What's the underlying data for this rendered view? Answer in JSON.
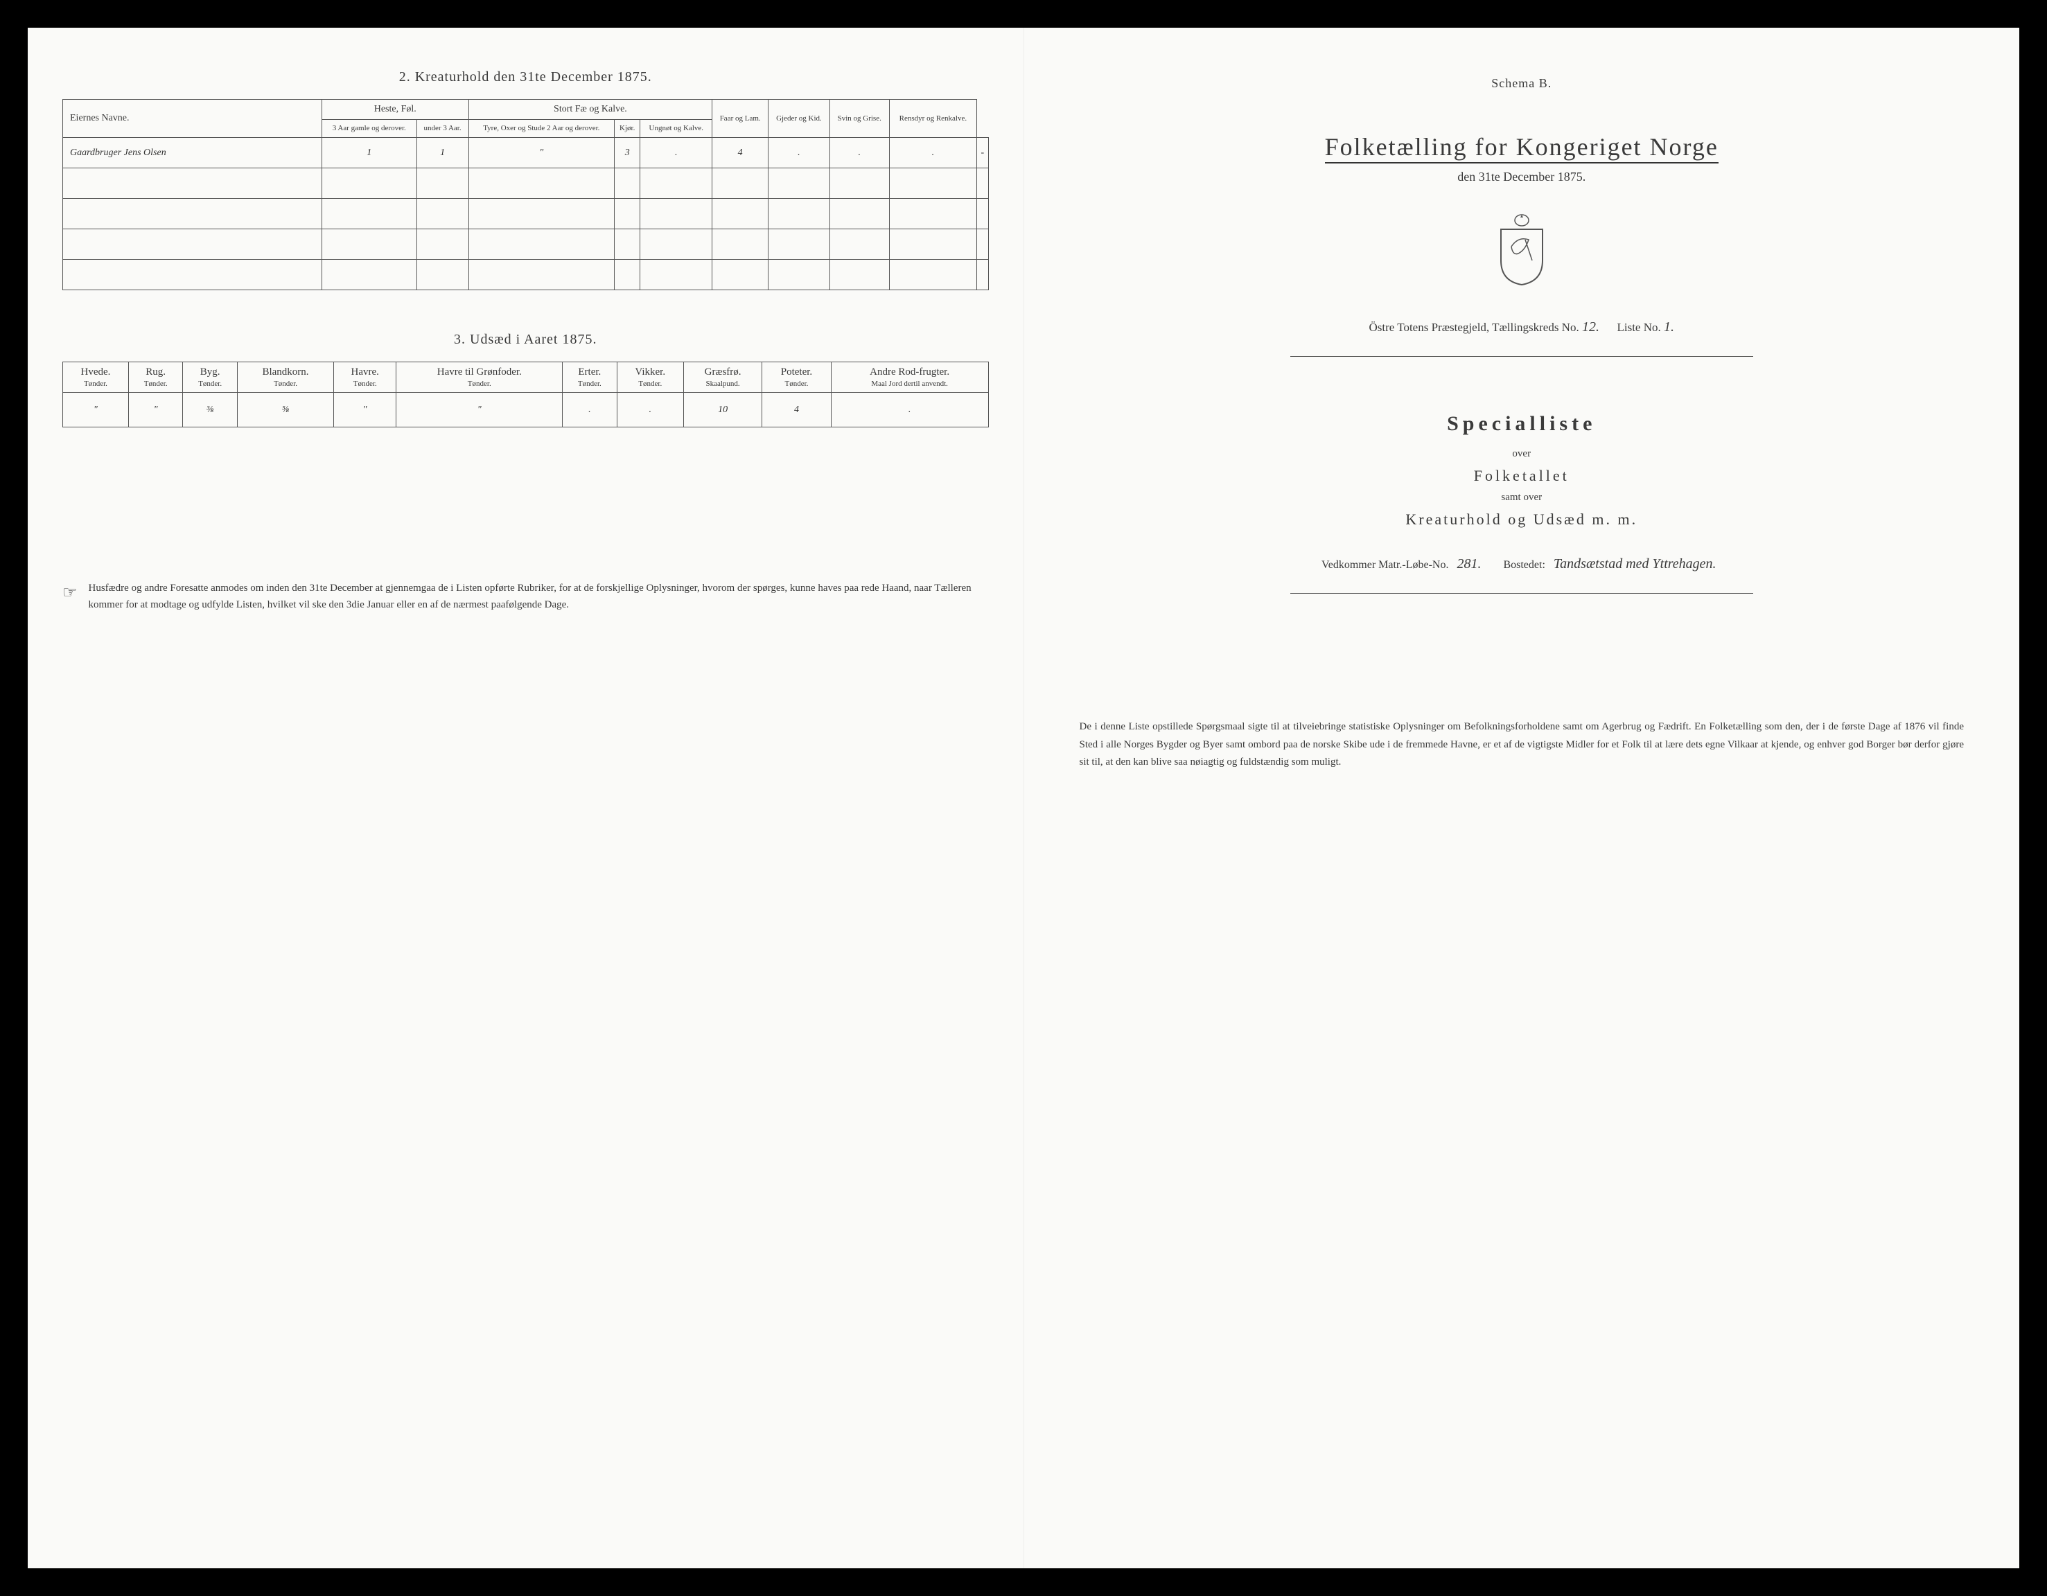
{
  "left": {
    "section2": {
      "title": "2.  Kreaturhold den 31te December 1875.",
      "headers": {
        "eier": "Eiernes Navne.",
        "heste_group": "Heste, Føl.",
        "heste_a": "3 Aar gamle og derover.",
        "heste_b": "under 3 Aar.",
        "stort_group": "Stort Fæ og Kalve.",
        "stort_a": "Tyre, Oxer og Stude 2 Aar og derover.",
        "stort_b": "Kjør.",
        "stort_c": "Ungnøt og Kalve.",
        "faar": "Faar og Lam.",
        "gjeder": "Gjeder og Kid.",
        "svin": "Svin og Grise.",
        "rensdyr": "Rensdyr og Renkalve."
      },
      "rows": [
        {
          "eier": "Gaardbruger Jens Olsen",
          "vals": [
            "1",
            "1",
            "\"",
            "3",
            ".",
            "4",
            ".",
            ".",
            ".",
            "-"
          ]
        },
        {
          "eier": "",
          "vals": [
            "",
            "",
            "",
            "",
            "",
            "",
            "",
            "",
            "",
            ""
          ]
        },
        {
          "eier": "",
          "vals": [
            "",
            "",
            "",
            "",
            "",
            "",
            "",
            "",
            "",
            ""
          ]
        },
        {
          "eier": "",
          "vals": [
            "",
            "",
            "",
            "",
            "",
            "",
            "",
            "",
            "",
            ""
          ]
        },
        {
          "eier": "",
          "vals": [
            "",
            "",
            "",
            "",
            "",
            "",
            "",
            "",
            "",
            ""
          ]
        }
      ]
    },
    "section3": {
      "title": "3.  Udsæd i Aaret 1875.",
      "columns": [
        {
          "h": "Hvede.",
          "u": "Tønder."
        },
        {
          "h": "Rug.",
          "u": "Tønder."
        },
        {
          "h": "Byg.",
          "u": "Tønder."
        },
        {
          "h": "Blandkorn.",
          "u": "Tønder."
        },
        {
          "h": "Havre.",
          "u": "Tønder."
        },
        {
          "h": "Havre til Grønfoder.",
          "u": "Tønder."
        },
        {
          "h": "Erter.",
          "u": "Tønder."
        },
        {
          "h": "Vikker.",
          "u": "Tønder."
        },
        {
          "h": "Græsfrø.",
          "u": "Skaalpund."
        },
        {
          "h": "Poteter.",
          "u": "Tønder."
        },
        {
          "h": "Andre Rod-frugter.",
          "u": "Maal Jord dertil anvendt."
        }
      ],
      "row": [
        "\"",
        "\"",
        "⅜",
        "⅝",
        "\"",
        "\"",
        ".",
        ".",
        "10",
        "4",
        "."
      ]
    },
    "footnote": "Husfædre og andre Foresatte anmodes om inden den 31te December at gjennemgaa de i Listen opførte Rubriker, for at de forskjellige Oplysninger, hvorom der spørges, kunne haves paa rede Haand, naar Tælleren kommer for at modtage og udfylde Listen, hvilket vil ske den 3die Januar eller en af de nærmest paafølgende Dage."
  },
  "right": {
    "schema": "Schema B.",
    "main_title": "Folketælling for Kongeriget Norge",
    "sub_date": "den 31te December 1875.",
    "district_prefix": "Östre Totens Præstegjeld, Tællingskreds No.",
    "district_no": "12.",
    "liste_prefix": "Liste No.",
    "liste_no": "1.",
    "specialliste": "Specialliste",
    "over": "over",
    "folketallet": "Folketallet",
    "samt_over": "samt over",
    "kreatur_line": "Kreaturhold og Udsæd m. m.",
    "vedkommer_prefix": "Vedkommer Matr.-Løbe-No.",
    "matr_no": "281.",
    "bostedet_prefix": "Bostedet:",
    "bostedet": "Tandsætstad med Yttrehagen.",
    "footnote": "De i denne Liste opstillede Spørgsmaal sigte til at tilveiebringe statistiske Oplysninger om Befolkningsforholdene samt om Agerbrug og Fædrift.  En Folketælling som den, der i de første Dage af 1876 vil finde Sted i alle Norges Bygder og Byer samt ombord paa de norske Skibe ude i de fremmede Havne, er et af de vigtigste Midler for et Folk til at lære dets egne Vilkaar at kjende, og enhver god Borger bør derfor gjøre sit til, at den kan blive saa nøiagtig og fuldstændig som muligt."
  }
}
